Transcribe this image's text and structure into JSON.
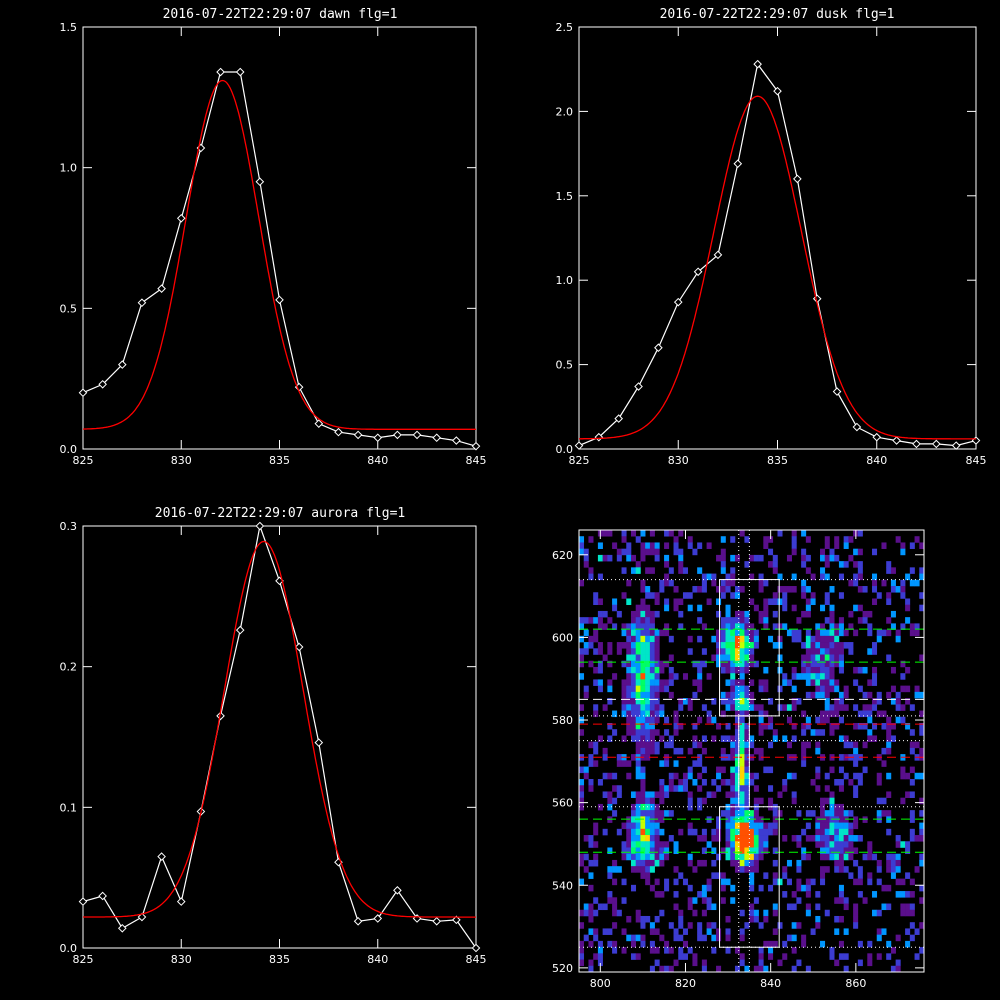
{
  "chart_data": [
    {
      "type": "line",
      "title": "2016-07-22T22:29:07 dawn flg=1",
      "xlabel": "",
      "ylabel": "",
      "xlim": [
        825,
        845
      ],
      "ylim": [
        0,
        1.5
      ],
      "xticks": [
        "825",
        "830",
        "835",
        "840",
        "845"
      ],
      "yticks": [
        "0.0",
        "0.5",
        "1.0",
        "1.5"
      ],
      "series": [
        {
          "color": "#ffffff",
          "marker": "diamond",
          "x": [
            825,
            826,
            827,
            828,
            829,
            830,
            831,
            832,
            833,
            834,
            835,
            836,
            837,
            838,
            839,
            840,
            841,
            842,
            843,
            844,
            845
          ],
          "y": [
            0.2,
            0.23,
            0.3,
            0.52,
            0.57,
            0.82,
            1.07,
            1.34,
            1.34,
            0.95,
            0.53,
            0.22,
            0.09,
            0.06,
            0.05,
            0.04,
            0.05,
            0.05,
            0.04,
            0.03,
            0.01
          ]
        },
        {
          "color": "#ff0000",
          "marker": "none",
          "fit": {
            "amplitude": 1.24,
            "center": 832.1,
            "sigma": 1.85,
            "offset": 0.07
          }
        }
      ]
    },
    {
      "type": "line",
      "title": "2016-07-22T22:29:07 dusk flg=1",
      "xlabel": "",
      "ylabel": "",
      "xlim": [
        825,
        845
      ],
      "ylim": [
        0,
        2.5
      ],
      "xticks": [
        "825",
        "830",
        "835",
        "840",
        "845"
      ],
      "yticks": [
        "0.0",
        "0.5",
        "1.0",
        "1.5",
        "2.0",
        "2.5"
      ],
      "series": [
        {
          "color": "#ffffff",
          "marker": "diamond",
          "x": [
            825,
            826,
            827,
            828,
            829,
            830,
            831,
            832,
            833,
            834,
            835,
            836,
            837,
            838,
            839,
            840,
            841,
            842,
            843,
            844,
            845
          ],
          "y": [
            0.02,
            0.07,
            0.18,
            0.37,
            0.6,
            0.87,
            1.05,
            1.15,
            1.69,
            2.28,
            2.12,
            1.6,
            0.89,
            0.34,
            0.13,
            0.07,
            0.05,
            0.03,
            0.03,
            0.02,
            0.05
          ]
        },
        {
          "color": "#ff0000",
          "marker": "none",
          "fit": {
            "amplitude": 2.03,
            "center": 834.0,
            "sigma": 2.2,
            "offset": 0.06
          }
        }
      ]
    },
    {
      "type": "line",
      "title": "2016-07-22T22:29:07 aurora flg=1",
      "xlabel": "",
      "ylabel": "",
      "xlim": [
        825,
        845
      ],
      "ylim": [
        0,
        0.3
      ],
      "xticks": [
        "825",
        "830",
        "835",
        "840",
        "845"
      ],
      "yticks": [
        "0.0",
        "0.1",
        "0.2",
        "0.3"
      ],
      "series": [
        {
          "color": "#ffffff",
          "marker": "diamond",
          "x": [
            825,
            826,
            827,
            828,
            829,
            830,
            831,
            832,
            833,
            834,
            835,
            836,
            837,
            838,
            839,
            840,
            841,
            842,
            843,
            844,
            845
          ],
          "y": [
            0.033,
            0.037,
            0.014,
            0.022,
            0.065,
            0.033,
            0.097,
            0.165,
            0.226,
            0.3,
            0.261,
            0.214,
            0.146,
            0.061,
            0.019,
            0.021,
            0.041,
            0.021,
            0.019,
            0.02,
            0.0
          ]
        },
        {
          "color": "#ff0000",
          "marker": "none",
          "fit": {
            "amplitude": 0.267,
            "center": 834.2,
            "sigma": 2.0,
            "offset": 0.022
          }
        }
      ]
    },
    {
      "type": "heatmap",
      "title": "",
      "xlabel": "",
      "ylabel": "",
      "xlim": [
        795,
        876
      ],
      "ylim": [
        519,
        626
      ],
      "xticks": [
        "800",
        "820",
        "840",
        "860"
      ],
      "yticks": [
        "520",
        "540",
        "560",
        "580",
        "600",
        "620"
      ],
      "hotspots": [
        {
          "x": 810,
          "y": 590,
          "width": 3,
          "height": 14,
          "intensity": 0.35
        },
        {
          "x": 810,
          "y": 552,
          "width": 3,
          "height": 7,
          "intensity": 0.4
        },
        {
          "x": 832,
          "y": 598,
          "width": 3,
          "height": 5,
          "intensity": 0.5
        },
        {
          "x": 833,
          "y": 585,
          "width": 2,
          "height": 3,
          "intensity": 0.45
        },
        {
          "x": 833,
          "y": 568,
          "width": 1.5,
          "height": 10,
          "intensity": 0.4
        },
        {
          "x": 834,
          "y": 551,
          "width": 3,
          "height": 5,
          "intensity": 0.75
        },
        {
          "x": 852,
          "y": 594,
          "width": 4,
          "height": 8,
          "intensity": 0.15
        },
        {
          "x": 855,
          "y": 552,
          "width": 4,
          "height": 7,
          "intensity": 0.18
        }
      ],
      "boxes": [
        {
          "color": "#ffffff",
          "x0": 828,
          "x1": 842,
          "y0": 581,
          "y1": 614
        },
        {
          "color": "#ffffff",
          "x0": 828,
          "x1": 842,
          "y0": 525,
          "y1": 559
        },
        {
          "color": "#ffffff",
          "x0": 832.5,
          "x1": 835,
          "y0": 559,
          "y1": 581
        }
      ],
      "horizontal_lines": [
        {
          "y": 614,
          "color": "#ffffff",
          "style": "dotted"
        },
        {
          "y": 602,
          "color": "#00ff00",
          "style": "dashed"
        },
        {
          "y": 594,
          "color": "#00ff00",
          "style": "dashed"
        },
        {
          "y": 585,
          "color": "#ffffff",
          "style": "dashed"
        },
        {
          "y": 581,
          "color": "#ffffff",
          "style": "dotted"
        },
        {
          "y": 579,
          "color": "#ff0000",
          "style": "dashed"
        },
        {
          "y": 575,
          "color": "#ffffff",
          "style": "dotted"
        },
        {
          "y": 571,
          "color": "#ff0000",
          "style": "dashed"
        },
        {
          "y": 559,
          "color": "#ffffff",
          "style": "dotted"
        },
        {
          "y": 556,
          "color": "#00ff00",
          "style": "dashed"
        },
        {
          "y": 548,
          "color": "#00ff00",
          "style": "dashed"
        },
        {
          "y": 525,
          "color": "#ffffff",
          "style": "dotted"
        }
      ],
      "vertical_lines": [
        {
          "x": 832.5,
          "color": "#ffffff",
          "style": "dotted"
        },
        {
          "x": 835,
          "color": "#ffffff",
          "style": "dotted"
        }
      ],
      "colormap": [
        "#000000",
        "#5a0f8c",
        "#3c3cd2",
        "#0096ff",
        "#00e6c8",
        "#00ff64",
        "#c8ff00",
        "#ffd200",
        "#ff5000"
      ]
    }
  ]
}
